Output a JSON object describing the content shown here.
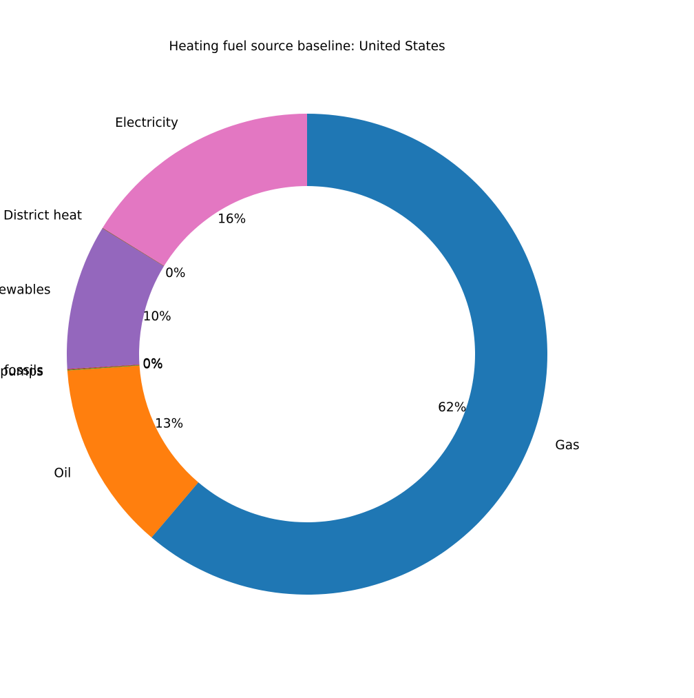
{
  "chart_data": {
    "type": "pie",
    "donut": true,
    "title": "Heating fuel source baseline: United States",
    "slices": [
      {
        "label": "Gas",
        "value": 61.6,
        "pct_label": "62%",
        "color": "#1f77b4"
      },
      {
        "label": "Oil",
        "value": 12.8,
        "pct_label": "13%",
        "color": "#ff7f0e"
      },
      {
        "label": "Heat pumps",
        "value": 0.05,
        "pct_label": "0%",
        "color": "#2ca02c"
      },
      {
        "label": "Other fossils",
        "value": 0.05,
        "pct_label": "0%",
        "color": "#d62728"
      },
      {
        "label": "Direct renewables",
        "value": 9.8,
        "pct_label": "10%",
        "color": "#9467bd"
      },
      {
        "label": "District heat",
        "value": 0.05,
        "pct_label": "0%",
        "color": "#8c564b"
      },
      {
        "label": "Electricity",
        "value": 16.3,
        "pct_label": "16%",
        "color": "#e377c2"
      }
    ],
    "start_angle_deg": 90,
    "direction": "clockwise",
    "legend": "none"
  }
}
